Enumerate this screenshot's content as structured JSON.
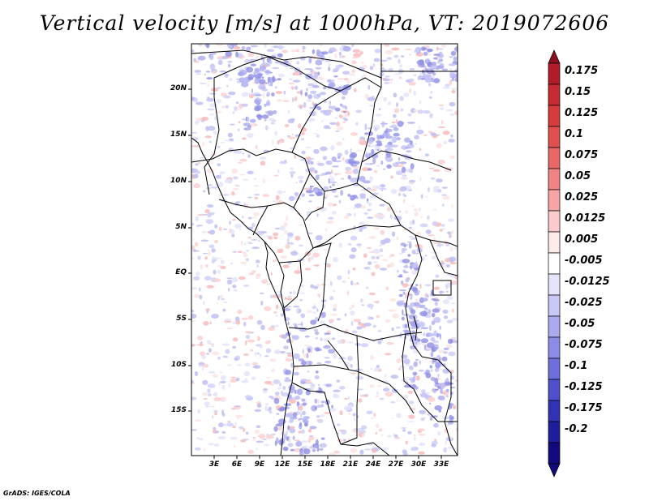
{
  "title": "Vertical velocity [m/s] at 1000hPa, VT: 2019072606",
  "credit": "GrADS: IGES/COLA",
  "map": {
    "lat_labels": [
      "20N",
      "15N",
      "10N",
      "5N",
      "EQ",
      "5S",
      "10S",
      "15S"
    ],
    "lon_labels": [
      "3E",
      "6E",
      "9E",
      "12E",
      "15E",
      "18E",
      "21E",
      "24E",
      "27E",
      "30E",
      "33E"
    ]
  },
  "colorbar": {
    "labels": [
      "0.175",
      "0.15",
      "0.125",
      "0.1",
      "0.075",
      "0.05",
      "0.025",
      "0.0125",
      "0.005",
      "-0.005",
      "-0.0125",
      "-0.025",
      "-0.05",
      "-0.075",
      "-0.1",
      "-0.125",
      "-0.175",
      "-0.2"
    ],
    "colors": [
      "#b01c28",
      "#c62a32",
      "#d63c3c",
      "#e05050",
      "#e86868",
      "#f08484",
      "#f6a4a4",
      "#fbcaca",
      "#fdeaea",
      "#ffffff",
      "#e4e4fb",
      "#c8c8f6",
      "#aaaaf0",
      "#8c8ce8",
      "#6e6edc",
      "#5050cc",
      "#3232b4",
      "#1e1e9a",
      "#100a7c"
    ],
    "top_tip_color": "#8c1020",
    "bottom_tip_color": "#100a7c"
  }
}
